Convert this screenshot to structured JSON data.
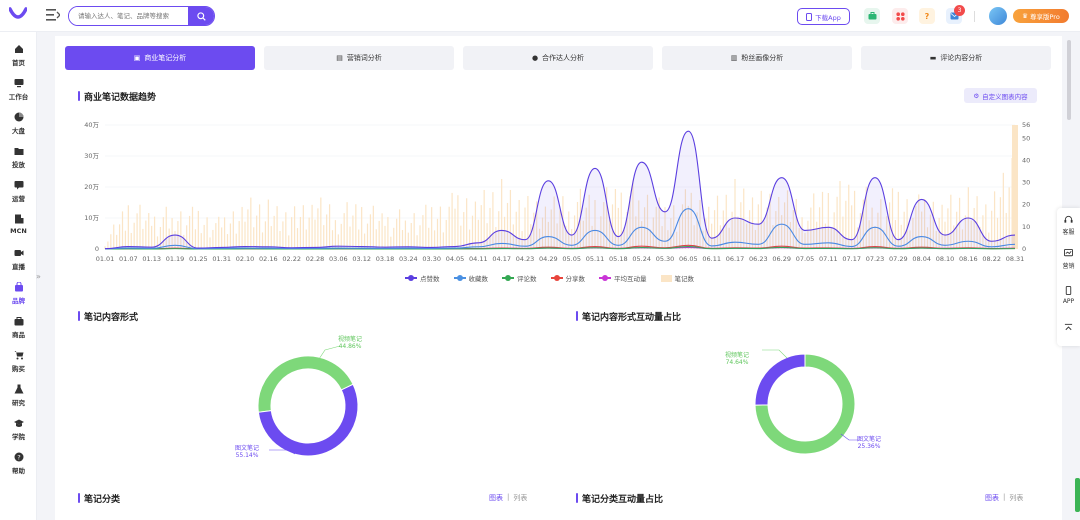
{
  "topbar": {
    "search_placeholder": "请输入达人、笔记、品牌等搜索",
    "download_label": "下载App",
    "notification_count": "3",
    "vip_label": "尊享版Pro"
  },
  "sidebar": {
    "items": [
      {
        "label": "首页"
      },
      {
        "label": "工作台"
      },
      {
        "label": "大盘"
      },
      {
        "label": "投放"
      },
      {
        "label": "运营"
      },
      {
        "label": "MCN"
      },
      {
        "label": "直播"
      },
      {
        "label": "品牌"
      },
      {
        "label": "商品"
      },
      {
        "label": "购买"
      },
      {
        "label": "研究"
      },
      {
        "label": "学院"
      },
      {
        "label": "帮助"
      }
    ]
  },
  "tabs": [
    {
      "label": "商业笔记分析",
      "active": true
    },
    {
      "label": "营销词分析"
    },
    {
      "label": "合作达人分析"
    },
    {
      "label": "粉丝画像分析"
    },
    {
      "label": "评论内容分析"
    }
  ],
  "trend": {
    "title": "商业笔记数据趋势",
    "custom_label": "自定义图表内容"
  },
  "chart_data": [
    {
      "type": "line",
      "title": "商业笔记数据趋势",
      "categories": [
        "01.01",
        "01.07",
        "01.13",
        "01.19",
        "01.25",
        "01.31",
        "02.10",
        "02.16",
        "02.22",
        "02.28",
        "03.06",
        "03.12",
        "03.18",
        "03.24",
        "03.30",
        "04.05",
        "04.11",
        "04.17",
        "04.23",
        "04.29",
        "05.05",
        "05.11",
        "05.18",
        "05.24",
        "05.30",
        "06.05",
        "06.11",
        "06.17",
        "06.23",
        "06.29",
        "07.05",
        "07.11",
        "07.17",
        "07.23",
        "07.29",
        "08.04",
        "08.10",
        "08.16",
        "08.22",
        "08.31"
      ],
      "y_left_ticks": [
        "0",
        "10万",
        "20万",
        "30万",
        "40万"
      ],
      "y_left_max": 400000,
      "y_right_ticks": [
        "0",
        "10",
        "20",
        "30",
        "40",
        "50",
        "56"
      ],
      "y_right_max": 56,
      "series": [
        {
          "name": "点赞数",
          "color": "#5b3fe0",
          "values": [
            1000,
            8000,
            6000,
            45000,
            3000,
            5000,
            8000,
            7000,
            4000,
            5000,
            9000,
            8000,
            6000,
            7000,
            5000,
            8000,
            20000,
            60000,
            30000,
            220000,
            45000,
            260000,
            40000,
            280000,
            120000,
            380000,
            35000,
            100000,
            80000,
            230000,
            60000,
            70000,
            30000,
            230000,
            30000,
            160000,
            45000,
            100000,
            25000,
            45000
          ]
        },
        {
          "name": "收藏数",
          "color": "#4a90e2",
          "values": [
            500,
            3000,
            2000,
            12000,
            1000,
            2000,
            3000,
            2500,
            1500,
            2000,
            3000,
            2500,
            2000,
            2500,
            1800,
            3000,
            7000,
            18000,
            9000,
            40000,
            12000,
            60000,
            12000,
            70000,
            25000,
            130000,
            10000,
            22000,
            15000,
            80000,
            15000,
            20000,
            8000,
            70000,
            9000,
            40000,
            12000,
            25000,
            7000,
            15000
          ]
        },
        {
          "name": "评论数",
          "color": "#34a853",
          "values": [
            100,
            400,
            300,
            1200,
            200,
            300,
            400,
            350,
            200,
            300,
            400,
            350,
            300,
            350,
            250,
            400,
            700,
            1500,
            800,
            3000,
            1000,
            4000,
            900,
            4500,
            2000,
            8000,
            900,
            2000,
            1500,
            5000,
            1500,
            1800,
            800,
            4000,
            900,
            3000,
            1000,
            2000,
            700,
            1200
          ]
        },
        {
          "name": "分享数",
          "color": "#e8453c",
          "values": [
            200,
            800,
            600,
            2500,
            400,
            600,
            800,
            700,
            400,
            600,
            800,
            700,
            600,
            700,
            500,
            800,
            1400,
            3000,
            1600,
            6000,
            2000,
            8000,
            1800,
            9000,
            4000,
            12000,
            1800,
            4000,
            3000,
            9000,
            3000,
            3600,
            1600,
            8000,
            1800,
            6000,
            2000,
            4000,
            1400,
            2400
          ]
        },
        {
          "name": "平均互动量",
          "color": "#c934d6",
          "values": [
            300,
            1000,
            900,
            2000,
            700,
            900,
            1000,
            950,
            800,
            900,
            1000,
            950,
            900,
            950,
            850,
            1000,
            1500,
            2500,
            1800,
            3500,
            2000,
            4000,
            2000,
            4200,
            2600,
            5000,
            1900,
            2800,
            2500,
            4500,
            2400,
            2600,
            1800,
            4000,
            1900,
            3200,
            2100,
            2900,
            1600,
            2200
          ]
        },
        {
          "name": "笔记数",
          "color": "#fbe5c6",
          "axis": "right",
          "values": [
            4,
            25,
            18,
            22,
            20,
            15,
            28,
            24,
            20,
            26,
            22,
            24,
            18,
            20,
            22,
            28,
            30,
            34,
            26,
            24,
            30,
            28,
            32,
            34,
            22,
            30,
            26,
            34,
            28,
            30,
            24,
            32,
            34,
            28,
            30,
            26,
            28,
            30,
            24,
            56
          ]
        }
      ]
    },
    {
      "type": "pie",
      "title": "笔记内容形式",
      "series": [
        {
          "name": "视频笔记",
          "value": 44.86,
          "label": "44.86%",
          "color": "#7ed87a"
        },
        {
          "name": "图文笔记",
          "value": 55.14,
          "label": "55.14%",
          "color": "#6c4bf0"
        }
      ]
    },
    {
      "type": "pie",
      "title": "笔记内容形式互动量占比",
      "series": [
        {
          "name": "视频笔记",
          "value": 74.64,
          "label": "74.64%",
          "color": "#7ed87a"
        },
        {
          "name": "图文笔记",
          "value": 25.36,
          "label": "25.36%",
          "color": "#6c4bf0"
        }
      ]
    }
  ],
  "sections": {
    "form": {
      "title": "笔记内容形式"
    },
    "form_share": {
      "title": "笔记内容形式互动量占比"
    },
    "category": {
      "title": "笔记分类",
      "view_chart": "图表",
      "view_list": "列表"
    },
    "category_share": {
      "title": "笔记分类互动量占比",
      "view_chart": "图表",
      "view_list": "列表"
    }
  },
  "right_float": [
    {
      "label": "客服"
    },
    {
      "label": "营销"
    },
    {
      "label": "APP"
    }
  ]
}
